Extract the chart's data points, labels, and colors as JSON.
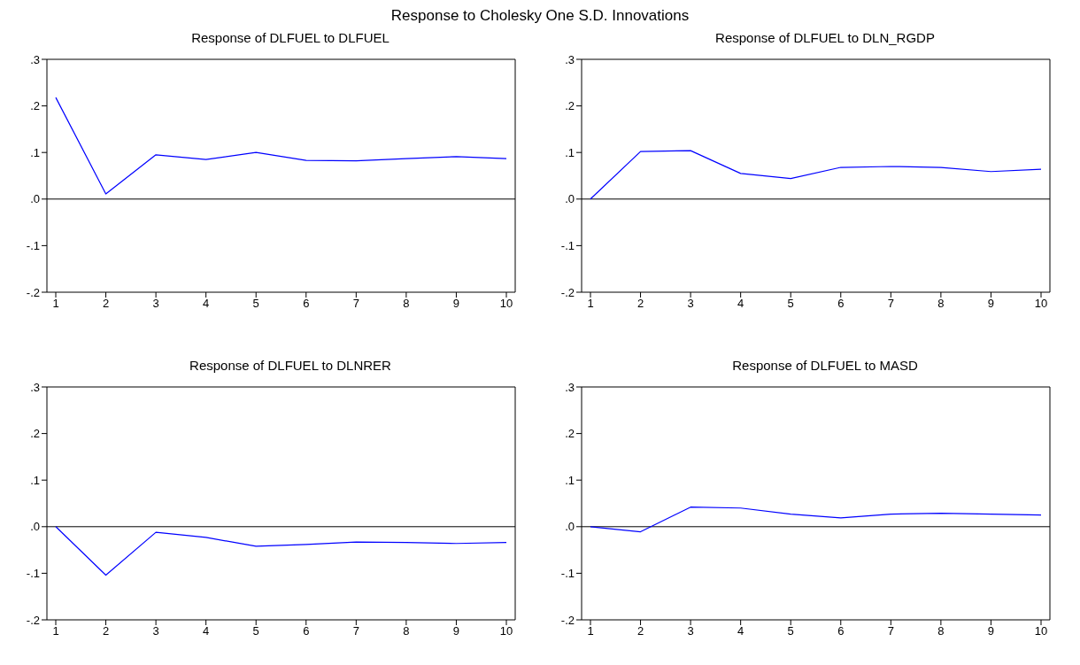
{
  "chart_data": [
    {
      "type": "line",
      "title": "Response of DLFUEL to DLFUEL",
      "annotations": [
        "Response to Cholesky One S.D. Innovations"
      ],
      "categories": [
        "1",
        "2",
        "3",
        "4",
        "5",
        "6",
        "7",
        "8",
        "9",
        "10"
      ],
      "series": [
        {
          "color": "#0000ff",
          "values": [
            0.218,
            0.011,
            0.095,
            0.085,
            0.1,
            0.083,
            0.082,
            0.087,
            0.091,
            0.087
          ]
        }
      ],
      "ylim": [
        -0.2,
        0.3
      ],
      "yticks": [
        {
          "value": -0.2,
          "label": "-.2"
        },
        {
          "value": -0.1,
          "label": "-.1"
        },
        {
          "value": 0,
          "label": ".0"
        },
        {
          "value": 0.1,
          "label": ".1"
        },
        {
          "value": 0.2,
          "label": ".2"
        },
        {
          "value": 0.3,
          "label": ".3"
        }
      ],
      "ref_lines": [
        {
          "axis": "y",
          "value": 0,
          "color": "#000000"
        }
      ],
      "marker": "none",
      "line_style": "solid"
    },
    {
      "type": "line",
      "title": "Response of DLFUEL to DLN_RGDP",
      "categories": [
        "1",
        "2",
        "3",
        "4",
        "5",
        "6",
        "7",
        "8",
        "9",
        "10"
      ],
      "series": [
        {
          "color": "#0000ff",
          "values": [
            0,
            0.102,
            0.104,
            0.055,
            0.044,
            0.068,
            0.07,
            0.068,
            0.059,
            0.064
          ]
        }
      ],
      "ylim": [
        -0.2,
        0.3
      ],
      "yticks": [
        {
          "value": -0.2,
          "label": "-.2"
        },
        {
          "value": -0.1,
          "label": "-.1"
        },
        {
          "value": 0,
          "label": ".0"
        },
        {
          "value": 0.1,
          "label": ".1"
        },
        {
          "value": 0.2,
          "label": ".2"
        },
        {
          "value": 0.3,
          "label": ".3"
        }
      ],
      "ref_lines": [
        {
          "axis": "y",
          "value": 0,
          "color": "#000000"
        }
      ],
      "marker": "none",
      "line_style": "solid"
    },
    {
      "type": "line",
      "title": "Response of DLFUEL to DLNRER",
      "categories": [
        "1",
        "2",
        "3",
        "4",
        "5",
        "6",
        "7",
        "8",
        "9",
        "10"
      ],
      "series": [
        {
          "color": "#0000ff",
          "values": [
            0,
            -0.104,
            -0.012,
            -0.023,
            -0.042,
            -0.038,
            -0.033,
            -0.034,
            -0.036,
            -0.034
          ]
        }
      ],
      "ylim": [
        -0.2,
        0.3
      ],
      "yticks": [
        {
          "value": -0.2,
          "label": "-.2"
        },
        {
          "value": -0.1,
          "label": "-.1"
        },
        {
          "value": 0,
          "label": ".0"
        },
        {
          "value": 0.1,
          "label": ".1"
        },
        {
          "value": 0.2,
          "label": ".2"
        },
        {
          "value": 0.3,
          "label": ".3"
        }
      ],
      "ref_lines": [
        {
          "axis": "y",
          "value": 0,
          "color": "#000000"
        }
      ],
      "marker": "none",
      "line_style": "solid"
    },
    {
      "type": "line",
      "title": "Response of DLFUEL to MASD",
      "categories": [
        "1",
        "2",
        "3",
        "4",
        "5",
        "6",
        "7",
        "8",
        "9",
        "10"
      ],
      "series": [
        {
          "color": "#0000ff",
          "values": [
            0,
            -0.011,
            0.042,
            0.04,
            0.027,
            0.019,
            0.027,
            0.029,
            0.027,
            0.025
          ]
        }
      ],
      "ylim": [
        -0.2,
        0.3
      ],
      "yticks": [
        {
          "value": -0.2,
          "label": "-.2"
        },
        {
          "value": -0.1,
          "label": "-.1"
        },
        {
          "value": 0,
          "label": ".0"
        },
        {
          "value": 0.1,
          "label": ".1"
        },
        {
          "value": 0.2,
          "label": ".2"
        },
        {
          "value": 0.3,
          "label": ".3"
        }
      ],
      "ref_lines": [
        {
          "axis": "y",
          "value": 0,
          "color": "#000000"
        }
      ],
      "marker": "none",
      "line_style": "solid"
    }
  ]
}
